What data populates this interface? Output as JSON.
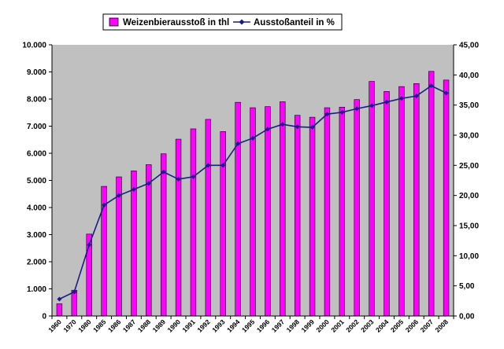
{
  "chart_data": {
    "type": "bar",
    "categories": [
      "1960",
      "1970",
      "1980",
      "1985",
      "1986",
      "1987",
      "1988",
      "1989",
      "1990",
      "1991",
      "1992",
      "1993",
      "1994",
      "1995",
      "1996",
      "1997",
      "1998",
      "1999",
      "2000",
      "2001",
      "2002",
      "2003",
      "2004",
      "2005",
      "2006",
      "2007",
      "2008"
    ],
    "series": [
      {
        "name": "Weizenbierausstoß in thl",
        "type": "bar",
        "axis": "left",
        "color": "#ff00ff",
        "values": [
          450,
          950,
          3020,
          4780,
          5130,
          5350,
          5580,
          5980,
          6520,
          6900,
          7250,
          6800,
          7880,
          7680,
          7720,
          7900,
          7400,
          7330,
          7680,
          7700,
          7980,
          8650,
          8280,
          8460,
          8570,
          9020,
          8700
        ]
      },
      {
        "name": "Ausstoßanteil in %",
        "type": "line",
        "axis": "right",
        "color": "#1a1a8c",
        "values": [
          2.8,
          4.0,
          11.8,
          18.4,
          20.0,
          21.0,
          22.0,
          23.9,
          22.7,
          23.1,
          25.0,
          25.0,
          28.6,
          29.5,
          31.0,
          31.8,
          31.4,
          31.3,
          33.5,
          33.8,
          34.4,
          34.9,
          35.5,
          36.1,
          36.5,
          38.2,
          37.0
        ]
      }
    ],
    "y_left": {
      "ylim": [
        0,
        10000
      ],
      "ticks": [
        0,
        1000,
        2000,
        3000,
        4000,
        5000,
        6000,
        7000,
        8000,
        9000,
        10000
      ],
      "tick_labels": [
        "0",
        "1.000",
        "2.000",
        "3.000",
        "4.000",
        "5.000",
        "6.000",
        "7.000",
        "8.000",
        "9.000",
        "10.000"
      ]
    },
    "y_right": {
      "ylim": [
        0,
        45
      ],
      "ticks": [
        0,
        5,
        10,
        15,
        20,
        25,
        30,
        35,
        40,
        45
      ],
      "tick_labels": [
        "0,00",
        "5,00",
        "10,00",
        "15,00",
        "20,00",
        "25,00",
        "30,00",
        "35,00",
        "40,00",
        "45,00"
      ]
    },
    "plot_background": "#c0c0c0",
    "grid": false,
    "legend": {
      "position": "top-center",
      "entries": [
        "Weizenbierausstoß in thl",
        "Ausstoßanteil in %"
      ]
    }
  }
}
